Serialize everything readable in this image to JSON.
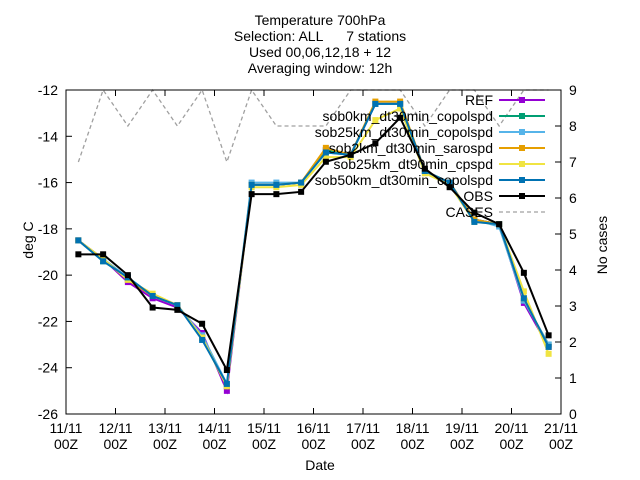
{
  "chart_data": {
    "type": "line",
    "title_lines": [
      "Temperature 700hPa",
      "Selection: ALL      7 stations",
      "Used 00,06,12,18 + 12",
      "Averaging window: 12h"
    ],
    "xlabel": "Date",
    "ylabel": "deg C",
    "y2label": "No cases",
    "ylim": [
      -26,
      -12
    ],
    "y2lim": [
      0,
      9
    ],
    "yticks": [
      -26,
      -24,
      -22,
      -20,
      -18,
      -16,
      -14,
      -12
    ],
    "y2ticks": [
      0,
      1,
      2,
      3,
      4,
      5,
      6,
      7,
      8,
      9
    ],
    "xlim": [
      0,
      20
    ],
    "xticks": [
      {
        "x": 0,
        "line1": "11/11",
        "line2": "00Z"
      },
      {
        "x": 2,
        "line1": "12/11",
        "line2": "00Z"
      },
      {
        "x": 4,
        "line1": "13/11",
        "line2": "00Z"
      },
      {
        "x": 6,
        "line1": "14/11",
        "line2": "00Z"
      },
      {
        "x": 8,
        "line1": "15/11",
        "line2": "00Z"
      },
      {
        "x": 10,
        "line1": "16/11",
        "line2": "00Z"
      },
      {
        "x": 12,
        "line1": "17/11",
        "line2": "00Z"
      },
      {
        "x": 14,
        "line1": "18/11",
        "line2": "00Z"
      },
      {
        "x": 16,
        "line1": "19/11",
        "line2": "00Z"
      },
      {
        "x": 18,
        "line1": "20/11",
        "line2": "00Z"
      },
      {
        "x": 20,
        "line1": "21/11",
        "line2": "00Z"
      }
    ],
    "legend_position": "top-right",
    "x": [
      0.5,
      1.5,
      2.5,
      3.5,
      4.5,
      5.5,
      6.5,
      7.5,
      8.5,
      9.5,
      10.5,
      11.5,
      12.5,
      13.5,
      14.5,
      15.5,
      16.5,
      17.5,
      18.5,
      19.5
    ],
    "series": [
      {
        "name": "REF",
        "color": "#9400d3",
        "marker": "square",
        "values": [
          -18.5,
          -19.3,
          -20.3,
          -21.0,
          -21.4,
          -22.5,
          -25.0,
          -16.1,
          -16.1,
          -16.0,
          -14.6,
          -14.8,
          -12.6,
          -12.6,
          -15.5,
          -16.0,
          -17.6,
          -17.8,
          -21.2,
          -23.1
        ]
      },
      {
        "name": "sob0km_dt30min_copolspd",
        "color": "#009e73",
        "marker": "square",
        "values": [
          -18.5,
          -19.4,
          -20.1,
          -20.9,
          -21.3,
          -22.7,
          -24.8,
          -16.1,
          -16.1,
          -16.0,
          -14.6,
          -14.8,
          -12.6,
          -12.6,
          -15.5,
          -16.0,
          -17.6,
          -17.8,
          -21.1,
          -23.0
        ]
      },
      {
        "name": "sob25km_dt30min_copolspd",
        "color": "#56b4e9",
        "marker": "square",
        "values": [
          -18.5,
          -19.3,
          -20.1,
          -20.9,
          -21.3,
          -22.6,
          -24.7,
          -16.0,
          -16.0,
          -16.0,
          -14.7,
          -14.8,
          -12.6,
          -12.6,
          -15.5,
          -16.0,
          -17.6,
          -17.9,
          -21.1,
          -23.0
        ]
      },
      {
        "name": "sob2km_dt30min_sarospd",
        "color": "#e69f00",
        "marker": "square",
        "values": [
          -18.5,
          -19.3,
          -20.2,
          -20.9,
          -21.3,
          -22.7,
          -24.8,
          -16.1,
          -16.1,
          -16.0,
          -14.5,
          -14.8,
          -12.5,
          -12.5,
          -15.5,
          -16.0,
          -17.6,
          -17.8,
          -21.0,
          -23.1
        ]
      },
      {
        "name": "sob25km_dt90min_cpspd",
        "color": "#f0e442",
        "marker": "square",
        "values": [
          -18.5,
          -19.3,
          -20.2,
          -20.8,
          -21.3,
          -22.7,
          -24.8,
          -16.2,
          -16.2,
          -16.1,
          -14.9,
          -14.9,
          -13.3,
          -12.8,
          -15.6,
          -16.1,
          -17.7,
          -17.8,
          -20.7,
          -23.4
        ]
      },
      {
        "name": "sob50km_dt30min_copolspd",
        "color": "#0072b2",
        "marker": "square",
        "values": [
          -18.5,
          -19.4,
          -20.1,
          -20.9,
          -21.3,
          -22.8,
          -24.7,
          -16.1,
          -16.1,
          -16.0,
          -14.7,
          -14.8,
          -12.6,
          -12.6,
          -15.5,
          -16.0,
          -17.7,
          -17.8,
          -21.0,
          -23.1
        ]
      },
      {
        "name": "OBS",
        "color": "#000000",
        "marker": "square",
        "values": [
          -19.1,
          -19.1,
          -20.0,
          -21.4,
          -21.5,
          -22.1,
          -24.1,
          -16.5,
          -16.5,
          -16.4,
          -15.1,
          -14.8,
          -14.3,
          -13.2,
          -15.4,
          -16.2,
          -17.3,
          -17.8,
          -19.9,
          -22.6
        ]
      },
      {
        "name": "CASES",
        "color": "#a0a0a0",
        "dashed": true,
        "axis": "y2",
        "values": [
          7,
          9,
          8,
          9,
          8,
          9,
          7,
          9,
          8,
          8,
          8,
          9,
          9,
          9,
          8,
          9,
          9,
          8,
          9,
          9
        ]
      }
    ]
  }
}
